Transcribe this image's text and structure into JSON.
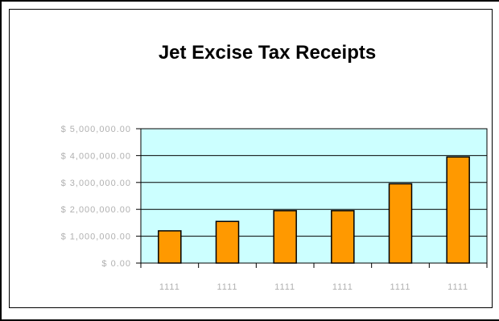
{
  "chart_data": {
    "type": "bar",
    "title": "Jet Excise Tax Receipts",
    "categories": [
      "1111",
      "1111",
      "1111",
      "1111",
      "1111",
      "1111"
    ],
    "values": [
      1.2,
      1.55,
      1.95,
      1.95,
      2.95,
      3.95
    ],
    "yticks": [
      "$ 0.00",
      "$ 1,000,000.00",
      "$ 2,000,000.00",
      "$ 3,000,000.00",
      "$ 4,000,000.00",
      "$ 5,000,000.00"
    ],
    "ylim": [
      0,
      5
    ],
    "grid": true,
    "colors": {
      "bar": "#FF9900",
      "plot_bg": "#CCFFFF",
      "grid": "#000000"
    }
  }
}
